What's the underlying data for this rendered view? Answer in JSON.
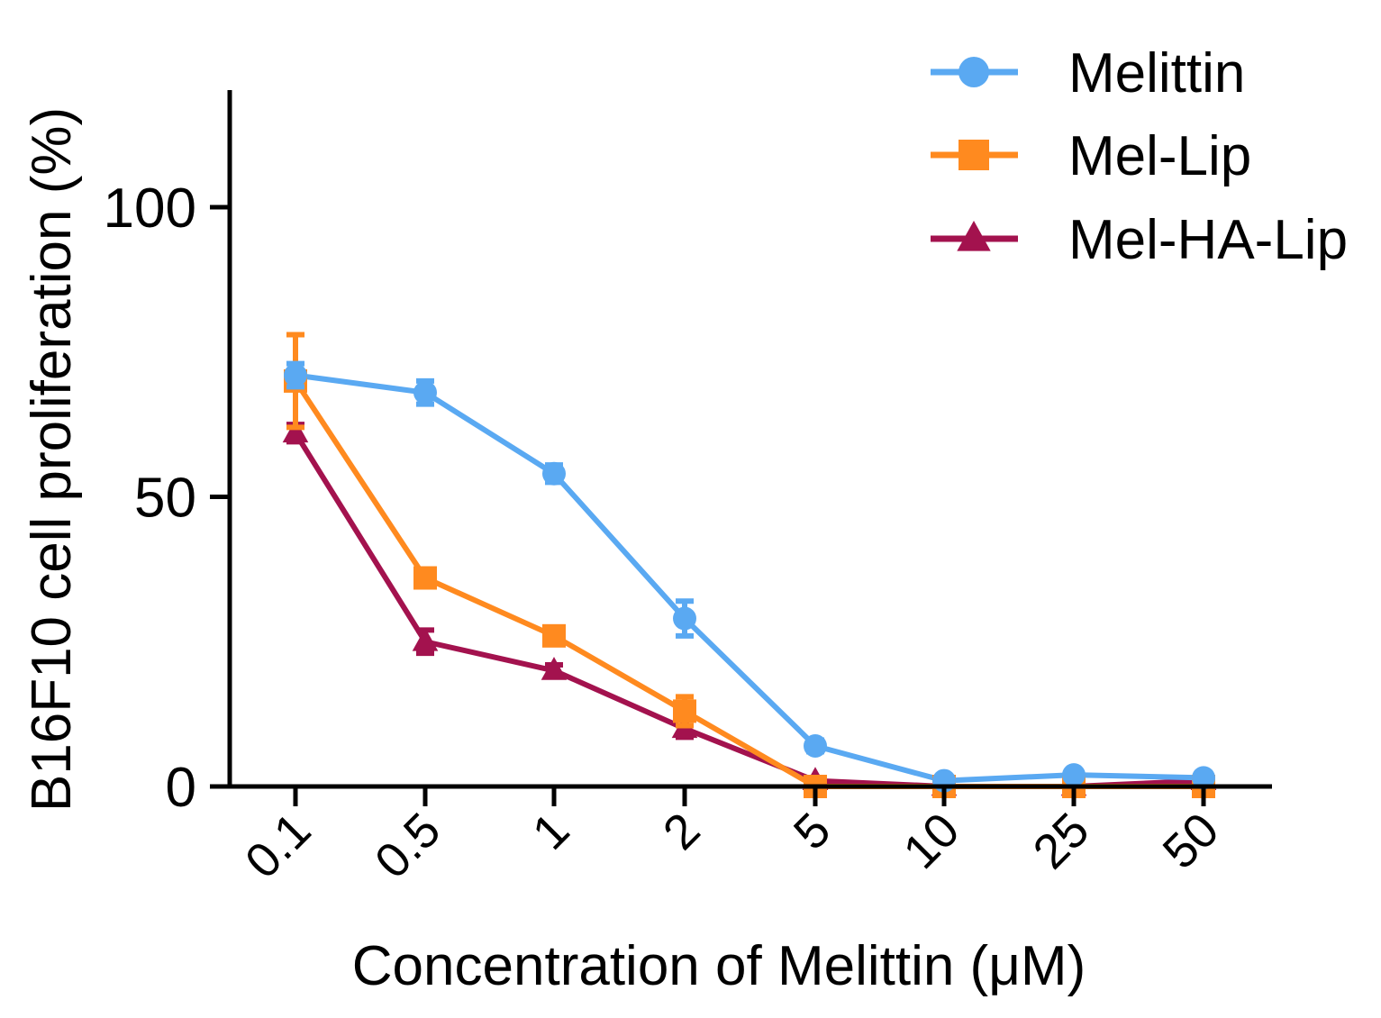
{
  "chart_data": {
    "type": "line",
    "title": "",
    "xlabel": "Concentration  of Melittin (μM)",
    "ylabel": "B16F10 cell proliferation (%)",
    "categories": [
      "0.1",
      "0.5",
      "1",
      "2",
      "5",
      "10",
      "25",
      "50"
    ],
    "ylim": [
      0,
      120
    ],
    "yticks": [
      "0",
      "50",
      "100"
    ],
    "grid": false,
    "legend_position": "top-right",
    "series": [
      {
        "name": "Melittin",
        "marker": "circle",
        "color": "#5aa9f2",
        "values": [
          71,
          68,
          54,
          29,
          7,
          1,
          2,
          1.5
        ],
        "errors": [
          2,
          2,
          1.5,
          3,
          1,
          0.5,
          0.5,
          0.5
        ]
      },
      {
        "name": "Mel-Lip",
        "marker": "square",
        "color": "#ff8a1f",
        "values": [
          70,
          36,
          26,
          13,
          0,
          0,
          0,
          0
        ],
        "errors": [
          8,
          1.5,
          1,
          2.5,
          0.5,
          0.5,
          0.5,
          0.5
        ]
      },
      {
        "name": "Mel-HA-Lip",
        "marker": "triangle",
        "color": "#a3124e",
        "values": [
          61,
          25,
          20,
          10,
          1,
          0,
          0,
          1
        ],
        "errors": [
          1.5,
          2,
          1,
          1.5,
          0.5,
          0.5,
          0.5,
          0.5
        ]
      }
    ]
  }
}
